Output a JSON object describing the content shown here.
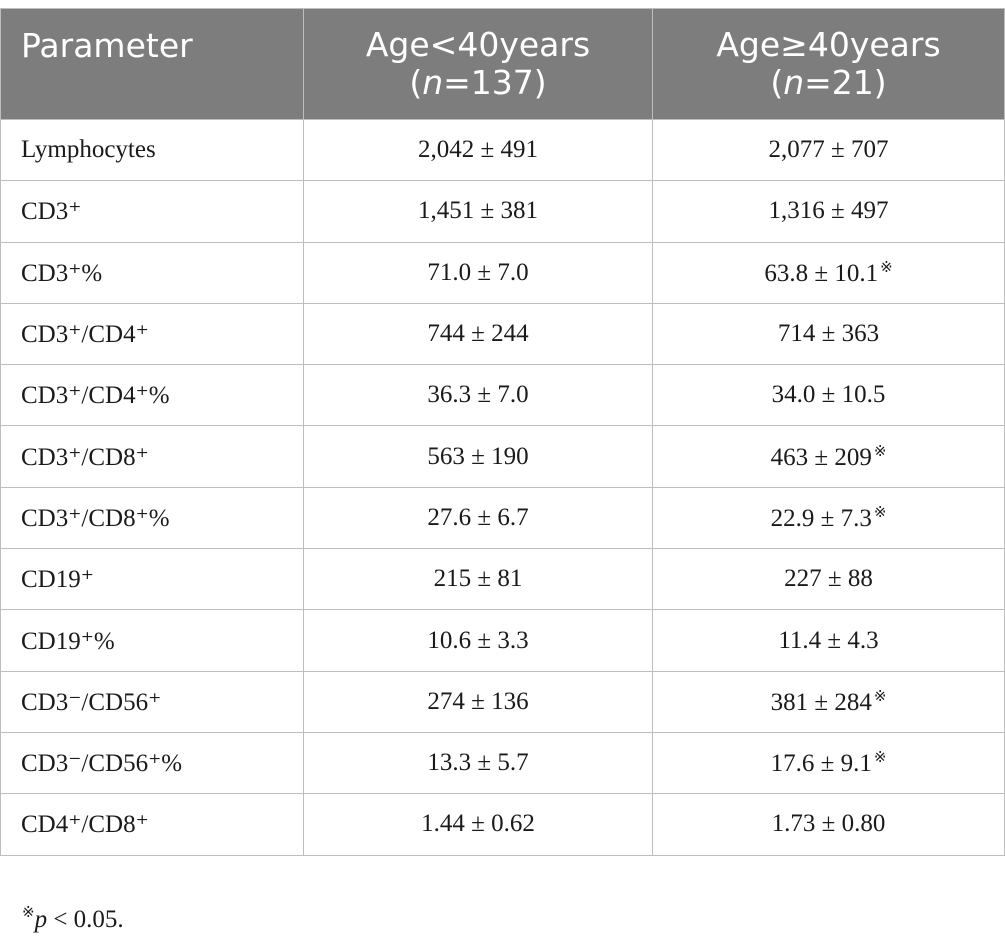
{
  "table": {
    "headers": {
      "parameter": "Parameter",
      "group1_line1": "Age<40years",
      "group1_n_label": "n",
      "group1_n_value": "=137)",
      "group2_line1": "Age≥40years",
      "group2_n_label": "n",
      "group2_n_value": "=21)",
      "open_paren": "("
    },
    "significance_mark": "※",
    "rows": [
      {
        "parameter": "Lymphocytes",
        "age_lt40": "2,042 ± 491",
        "age_ge40": "2,077 ± 707",
        "significant": false
      },
      {
        "parameter": "CD3⁺",
        "age_lt40": "1,451 ± 381",
        "age_ge40": "1,316 ± 497",
        "significant": false
      },
      {
        "parameter": "CD3⁺%",
        "age_lt40": "71.0 ± 7.0",
        "age_ge40": "63.8 ± 10.1",
        "significant": true
      },
      {
        "parameter": "CD3⁺/CD4⁺",
        "age_lt40": "744 ± 244",
        "age_ge40": "714 ± 363",
        "significant": false
      },
      {
        "parameter": "CD3⁺/CD4⁺%",
        "age_lt40": "36.3 ± 7.0",
        "age_ge40": "34.0 ± 10.5",
        "significant": false
      },
      {
        "parameter": "CD3⁺/CD8⁺",
        "age_lt40": "563 ± 190",
        "age_ge40": "463 ± 209",
        "significant": true
      },
      {
        "parameter": "CD3⁺/CD8⁺%",
        "age_lt40": "27.6 ± 6.7",
        "age_ge40": "22.9 ± 7.3",
        "significant": true
      },
      {
        "parameter": "CD19⁺",
        "age_lt40": "215 ± 81",
        "age_ge40": "227 ± 88",
        "significant": false
      },
      {
        "parameter": "CD19⁺%",
        "age_lt40": "10.6 ± 3.3",
        "age_ge40": "11.4 ± 4.3",
        "significant": false
      },
      {
        "parameter": "CD3⁻/CD56⁺",
        "age_lt40": "274 ± 136",
        "age_ge40": "381 ± 284",
        "significant": true
      },
      {
        "parameter": "CD3⁻/CD56⁺%",
        "age_lt40": "13.3 ± 5.7",
        "age_ge40": "17.6 ± 9.1",
        "significant": true
      },
      {
        "parameter": "CD4⁺/CD8⁺",
        "age_lt40": "1.44 ± 0.62",
        "age_ge40": "1.73 ± 0.80",
        "significant": false
      }
    ]
  },
  "footnote": {
    "symbol": "※",
    "p_label": "p",
    "text": " < 0.05."
  },
  "colors": {
    "header_background": "#7d7d7d",
    "header_text": "#ffffff",
    "grid_lines": "#bdbdbd",
    "body_text": "#1a1a1a"
  }
}
